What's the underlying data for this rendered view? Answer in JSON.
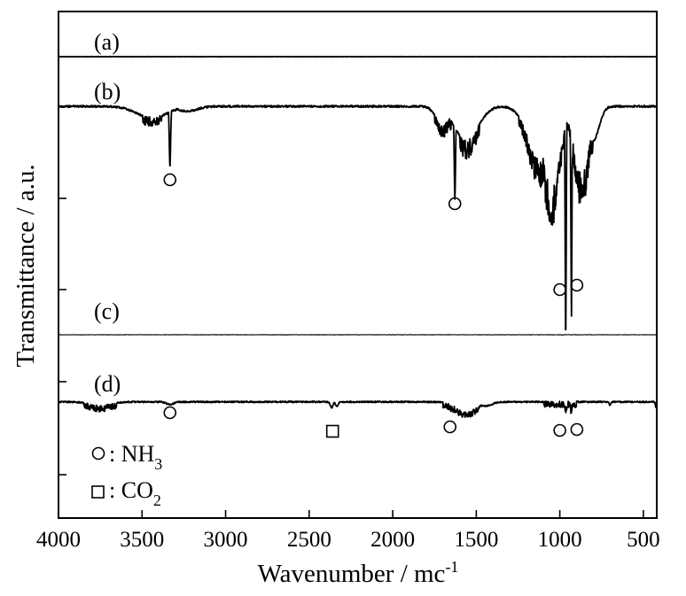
{
  "chart_data": {
    "type": "line",
    "title": "",
    "xlabel": "Wavenumber / mc",
    "xlabel_superscript": "-1",
    "ylabel": "Transmittance / a.u.",
    "xlim": [
      4000,
      420
    ],
    "x_reversed": true,
    "x_ticks": [
      4000,
      3500,
      3000,
      2500,
      2000,
      1500,
      1000,
      500
    ],
    "y_ticks_labeled": false,
    "grid": false,
    "series": [
      {
        "name": "(a)",
        "style": "flat",
        "features": [
          {
            "x": 980,
            "depth": 0.03
          },
          {
            "x": 2360,
            "depth": 0.01
          }
        ]
      },
      {
        "name": "(b)",
        "style": "nh3",
        "features": [
          {
            "x": 3440,
            "depth": 0.12,
            "width": 90
          },
          {
            "x": 3333,
            "depth": 0.62,
            "width": 4
          },
          {
            "x": 3230,
            "depth": 0.05,
            "width": 60
          },
          {
            "x": 1700,
            "depth": 0.2,
            "width": 40
          },
          {
            "x": 1628,
            "depth": 0.95,
            "width": 4
          },
          {
            "x": 1560,
            "depth": 0.35,
            "width": 70
          },
          {
            "x": 1120,
            "depth": 0.55,
            "width": 70
          },
          {
            "x": 1050,
            "depth": 0.85,
            "width": 50
          },
          {
            "x": 965,
            "depth": 1.85,
            "width": 3
          },
          {
            "x": 931,
            "depth": 1.8,
            "width": 3
          },
          {
            "x": 870,
            "depth": 0.7,
            "width": 45
          },
          {
            "x": 800,
            "depth": 0.35,
            "width": 35
          }
        ]
      },
      {
        "name": "(c)",
        "style": "flat",
        "features": [
          {
            "x": 980,
            "depth": 0.04
          },
          {
            "x": 2360,
            "depth": 0.02
          }
        ]
      },
      {
        "name": "(d)",
        "style": "mixed",
        "features": [
          {
            "x": 3750,
            "depth": 0.12,
            "width": 60
          },
          {
            "x": 3333,
            "depth": 0.08,
            "width": 20
          },
          {
            "x": 2365,
            "depth": 0.16,
            "width": 8
          },
          {
            "x": 2335,
            "depth": 0.12,
            "width": 8
          },
          {
            "x": 1650,
            "depth": 0.2,
            "width": 5
          },
          {
            "x": 1560,
            "depth": 0.3,
            "width": 60
          },
          {
            "x": 1450,
            "depth": 0.12,
            "width": 40
          },
          {
            "x": 965,
            "depth": 0.2,
            "width": 4
          },
          {
            "x": 931,
            "depth": 0.22,
            "width": 4
          },
          {
            "x": 700,
            "depth": 0.1,
            "width": 5
          },
          {
            "x": 425,
            "depth": 0.15,
            "width": 3
          }
        ]
      }
    ],
    "markers": [
      {
        "series": "(b)",
        "symbol": "circle",
        "x": 3333,
        "label_species": "NH3"
      },
      {
        "series": "(b)",
        "symbol": "circle",
        "x": 1628,
        "label_species": "NH3"
      },
      {
        "series": "(b)",
        "symbol": "circle",
        "x": 1000,
        "label_species": "NH3"
      },
      {
        "series": "(b)",
        "symbol": "circle",
        "x": 898,
        "label_species": "NH3"
      },
      {
        "series": "(d)",
        "symbol": "circle",
        "x": 3333,
        "label_species": "NH3"
      },
      {
        "series": "(d)",
        "symbol": "square",
        "x": 2360,
        "label_species": "CO2"
      },
      {
        "series": "(d)",
        "symbol": "circle",
        "x": 1657,
        "label_species": "NH3"
      },
      {
        "series": "(d)",
        "symbol": "circle",
        "x": 1000,
        "label_species": "NH3"
      },
      {
        "series": "(d)",
        "symbol": "circle",
        "x": 898,
        "label_species": "NH3"
      }
    ],
    "legend": {
      "placement": "bottom-left",
      "entries": [
        {
          "symbol": "circle",
          "text": ": NH",
          "subscript": "3"
        },
        {
          "symbol": "square",
          "text": ": CO",
          "subscript": "2"
        }
      ]
    }
  }
}
